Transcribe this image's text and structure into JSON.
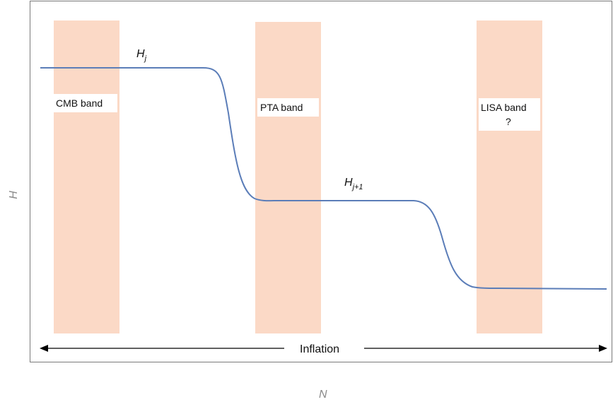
{
  "axes": {
    "x_title": "N",
    "y_title": "H"
  },
  "bands": [
    {
      "label_lines": [
        "CMB band"
      ]
    },
    {
      "label_lines": [
        "PTA band"
      ]
    },
    {
      "label_lines": [
        "LISA band",
        "?"
      ]
    }
  ],
  "curve_labels": {
    "first": {
      "base": "H",
      "sub": "j"
    },
    "second": {
      "base": "H",
      "sub": "j+1"
    }
  },
  "arrow": {
    "label": "Inflation"
  },
  "colors": {
    "band": "#fbd9c6",
    "curve": "#5b7db8",
    "frame": "#7a7a7a",
    "axis_title": "#8a8a8a"
  }
}
